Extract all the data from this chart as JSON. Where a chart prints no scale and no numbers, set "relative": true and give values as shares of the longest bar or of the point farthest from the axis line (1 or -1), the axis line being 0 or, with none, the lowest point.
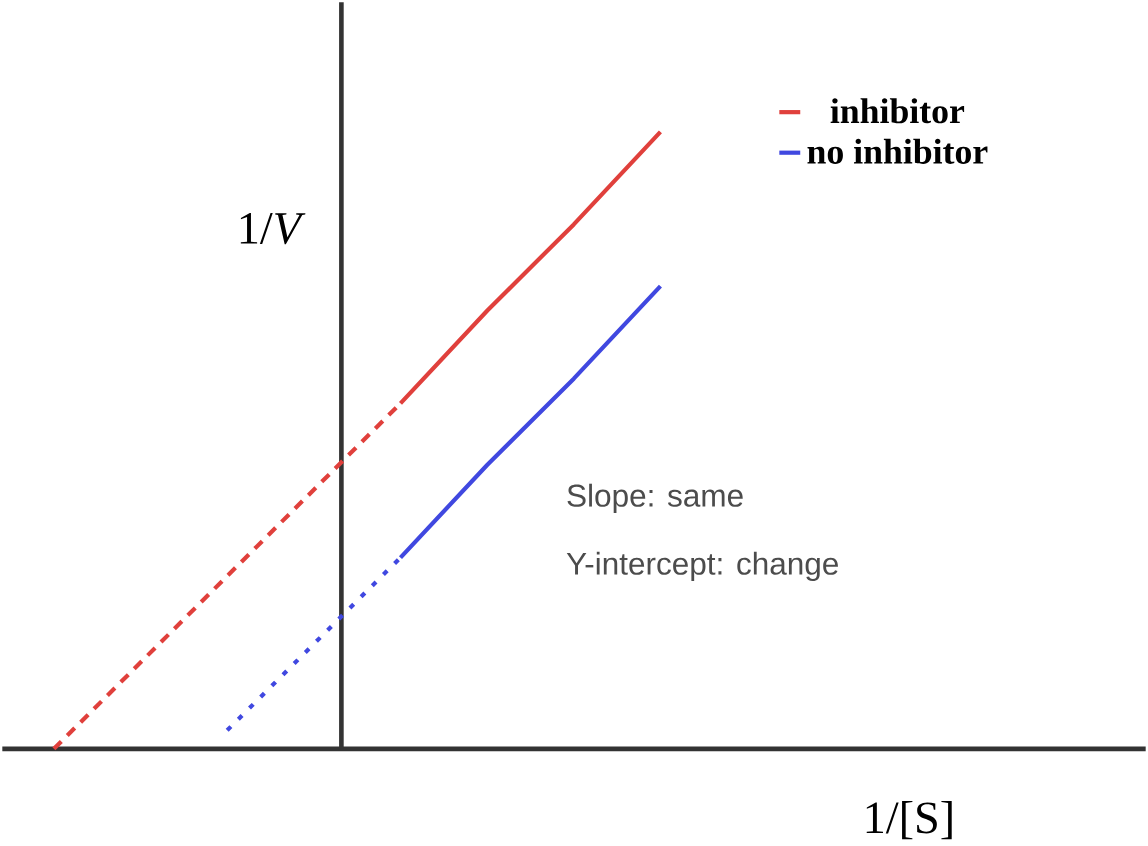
{
  "chart_data": {
    "type": "line",
    "relative": true,
    "xlabel": "1/[S]",
    "ylabel": "1/*V*",
    "legend": "top right",
    "annotations": [
      "Slope: same",
      "Y-intercept: change"
    ],
    "categories": [
      null,
      null,
      null,
      null,
      null,
      null,
      null,
      null
    ],
    "series": [
      {
        "color": "#e0403c",
        "line_style": "dashed",
        "values": [
          0,
          0.14,
          0.28,
          0.42,
          0.56,
          null,
          null,
          null
        ]
      },
      {
        "name": "inhibitor",
        "color": "#e0403c",
        "line_style": "solid",
        "values": [
          null,
          null,
          null,
          null,
          0.56,
          0.71,
          0.85,
          1
        ]
      },
      {
        "color": "#4048e0",
        "line_style": "dotted",
        "values": [
          null,
          null,
          0.03,
          0.17,
          0.31,
          null,
          null,
          null
        ]
      },
      {
        "name": "no inhibitor",
        "color": "#4048e0",
        "line_style": "solid",
        "values": [
          null,
          null,
          null,
          null,
          0.31,
          0.46,
          0.6,
          0.75
        ]
      }
    ]
  }
}
